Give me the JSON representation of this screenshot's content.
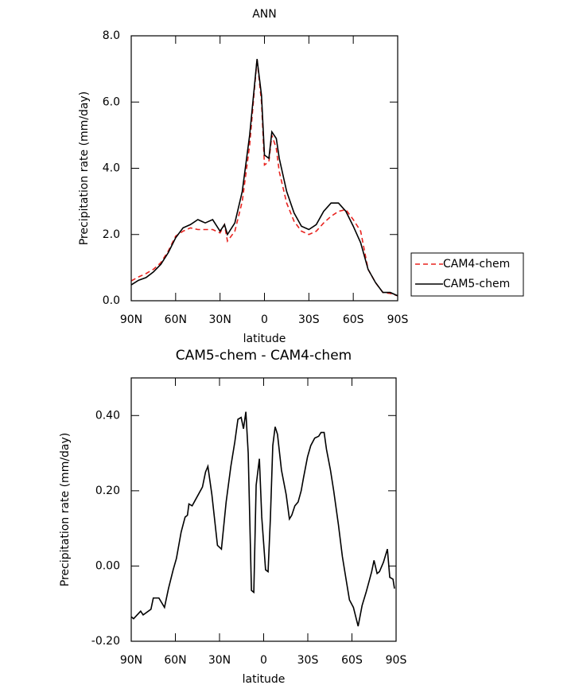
{
  "chart_data": [
    {
      "type": "line",
      "title": "ANN",
      "x_label": "latitude",
      "y_label": "Precipitation rate (mm/day)",
      "x": [
        90,
        85,
        80,
        75,
        70,
        65,
        60,
        55,
        50,
        45,
        40,
        35,
        30,
        27,
        25,
        20,
        15,
        10,
        5,
        2,
        0,
        -3,
        -5,
        -8,
        -10,
        -15,
        -20,
        -25,
        -30,
        -35,
        -40,
        -45,
        -50,
        -55,
        -60,
        -65,
        -70,
        -75,
        -80,
        -85,
        -90
      ],
      "series": [
        {
          "name": "CAM4-chem",
          "color": "#e8231f",
          "style": "dashed",
          "values": [
            0.6,
            0.72,
            0.82,
            0.95,
            1.15,
            1.5,
            1.95,
            2.1,
            2.2,
            2.15,
            2.15,
            2.15,
            2.05,
            2.3,
            1.8,
            2.1,
            3.0,
            4.7,
            7.3,
            6.0,
            4.1,
            4.2,
            5.0,
            4.6,
            3.9,
            2.95,
            2.4,
            2.1,
            2.0,
            2.1,
            2.35,
            2.55,
            2.7,
            2.75,
            2.45,
            2.1,
            0.95,
            0.55,
            0.25,
            0.22,
            0.15
          ]
        },
        {
          "name": "CAM5-chem",
          "color": "#000000",
          "style": "solid",
          "values": [
            0.48,
            0.62,
            0.7,
            0.87,
            1.1,
            1.45,
            1.9,
            2.2,
            2.3,
            2.45,
            2.35,
            2.45,
            2.1,
            2.3,
            2.0,
            2.35,
            3.3,
            5.0,
            7.3,
            6.2,
            4.4,
            4.3,
            5.1,
            4.9,
            4.3,
            3.3,
            2.65,
            2.25,
            2.15,
            2.3,
            2.7,
            2.95,
            2.95,
            2.7,
            2.25,
            1.75,
            0.95,
            0.55,
            0.25,
            0.25,
            0.15
          ]
        }
      ],
      "xlim": [
        90,
        -90
      ],
      "xticks": [
        {
          "value": 90,
          "label": "90N"
        },
        {
          "value": 60,
          "label": "60N"
        },
        {
          "value": 30,
          "label": "30N"
        },
        0,
        {
          "value": -30,
          "label": "30S"
        },
        {
          "value": -60,
          "label": "60S"
        },
        {
          "value": -90,
          "label": "90S"
        }
      ],
      "ylim": [
        0,
        8
      ],
      "yticks": [
        {
          "value": 0,
          "label": "0.0"
        },
        {
          "value": 2,
          "label": "2.0"
        },
        {
          "value": 4,
          "label": "4.0"
        },
        {
          "value": 6,
          "label": "6.0"
        },
        {
          "value": 8,
          "label": "8.0"
        }
      ],
      "legend": "right"
    },
    {
      "type": "line",
      "title": "CAM5-chem - CAM4-chem",
      "x_label": "latitude",
      "y_label": "Precipitation rate (mm/day)",
      "x": [
        90,
        88.4,
        83.6,
        81.9,
        76.6,
        75.0,
        71.2,
        67.4,
        64.7,
        61.5,
        59.3,
        56.1,
        53.4,
        51.8,
        50.8,
        48.6,
        46.5,
        41.6,
        39.5,
        37.9,
        35.2,
        31.4,
        28.7,
        25.5,
        22.3,
        19.6,
        17.5,
        15.3,
        13.7,
        12.1,
        10.5,
        8.3,
        6.7,
        5.1,
        2.9,
        1.3,
        -1.3,
        -3.0,
        -4.6,
        -6.2,
        -7.8,
        -9.4,
        -12.1,
        -15.3,
        -17.5,
        -19.1,
        -21.2,
        -23.4,
        -25.5,
        -27.1,
        -29.8,
        -32.0,
        -34.7,
        -37.4,
        -39.0,
        -41.1,
        -42.7,
        -45.4,
        -47.6,
        -50.8,
        -53.5,
        -56.2,
        -58.3,
        -61.0,
        -64.2,
        -66.9,
        -69.6,
        -71.7,
        -73.4,
        -75.0,
        -77.1,
        -78.7,
        -81.4,
        -84.1,
        -85.7,
        -87.9,
        -88.9
      ],
      "values": [
        -0.135,
        -0.14,
        -0.12,
        -0.13,
        -0.115,
        -0.085,
        -0.085,
        -0.11,
        -0.06,
        -0.01,
        0.02,
        0.09,
        0.13,
        0.135,
        0.165,
        0.16,
        0.175,
        0.21,
        0.25,
        0.265,
        0.19,
        0.055,
        0.045,
        0.17,
        0.265,
        0.33,
        0.39,
        0.395,
        0.365,
        0.41,
        0.3,
        -0.065,
        -0.07,
        0.215,
        0.285,
        0.13,
        -0.01,
        -0.015,
        0.13,
        0.32,
        0.37,
        0.35,
        0.255,
        0.19,
        0.125,
        0.135,
        0.16,
        0.17,
        0.2,
        0.235,
        0.29,
        0.32,
        0.34,
        0.345,
        0.355,
        0.355,
        0.31,
        0.255,
        0.2,
        0.11,
        0.025,
        -0.04,
        -0.09,
        -0.11,
        -0.16,
        -0.105,
        -0.07,
        -0.04,
        -0.015,
        0.015,
        -0.02,
        -0.015,
        0.01,
        0.045,
        -0.03,
        -0.035,
        -0.06
      ],
      "color": "#000000",
      "xlim": [
        90,
        -90
      ],
      "xticks": [
        {
          "value": 90,
          "label": "90N"
        },
        {
          "value": 60,
          "label": "60N"
        },
        {
          "value": 30,
          "label": "30N"
        },
        0,
        {
          "value": -30,
          "label": "30S"
        },
        {
          "value": -60,
          "label": "60S"
        },
        {
          "value": -90,
          "label": "90S"
        }
      ],
      "ylim": [
        -0.2,
        0.5
      ],
      "yticks": [
        {
          "value": -0.2,
          "label": "-0.20"
        },
        {
          "value": 0,
          "label": "0.00"
        },
        {
          "value": 0.2,
          "label": "0.20"
        },
        {
          "value": 0.4,
          "label": "0.40"
        }
      ]
    }
  ]
}
